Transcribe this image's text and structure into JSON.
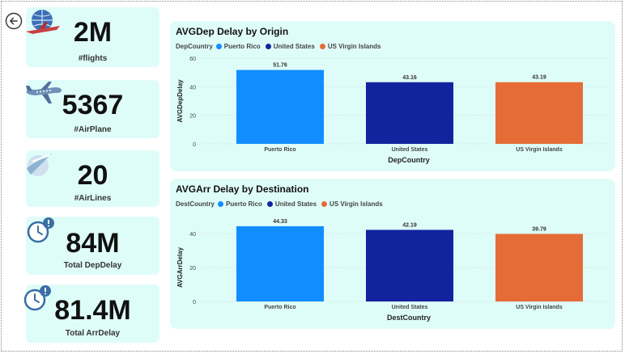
{
  "kpis": [
    {
      "value": "2M",
      "label": "#flights",
      "icon": "globe-plane-icon"
    },
    {
      "value": "5367",
      "label": "#AirPlane",
      "icon": "airplane-icon"
    },
    {
      "value": "20",
      "label": "#AirLines",
      "icon": "airline-swoosh-icon"
    },
    {
      "value": "84M",
      "label": "Total DepDelay",
      "icon": "clock-alert-icon"
    },
    {
      "value": "81.4M",
      "label": "Total ArrDelay",
      "icon": "clock-alert-icon"
    }
  ],
  "colors": {
    "puerto_rico": "#118DFF",
    "united_states": "#12239E",
    "us_virgin_islands": "#E66C37",
    "card_bg": "#dffdf8"
  },
  "chart_data": [
    {
      "type": "bar",
      "title": "AVGDep Delay by Origin",
      "legend_title": "DepCountry",
      "legend_position": "top-left",
      "categories": [
        "Puerto Rico",
        "United States",
        "US Virgin Islands"
      ],
      "values": [
        51.76,
        43.16,
        43.19
      ],
      "value_labels": [
        "51.76",
        "43.16",
        "43.19"
      ],
      "xlabel": "DepCountry",
      "ylabel": "AVGDepDelay",
      "ylim": [
        0,
        60
      ],
      "yticks": [
        "0",
        "20",
        "40",
        "60"
      ],
      "grid": true
    },
    {
      "type": "bar",
      "title": "AVGArr Delay by Destination",
      "legend_title": "DestCountry",
      "legend_position": "top-left",
      "categories": [
        "Puerto Rico",
        "United States",
        "US Virgin Islands"
      ],
      "values": [
        44.33,
        42.19,
        39.79
      ],
      "value_labels": [
        "44.33",
        "42.19",
        "39.79"
      ],
      "xlabel": "DestCountry",
      "ylabel": "AVGArrDelay",
      "ylim": [
        0,
        40
      ],
      "yticks": [
        "0",
        "20",
        "40"
      ],
      "grid": true
    }
  ]
}
